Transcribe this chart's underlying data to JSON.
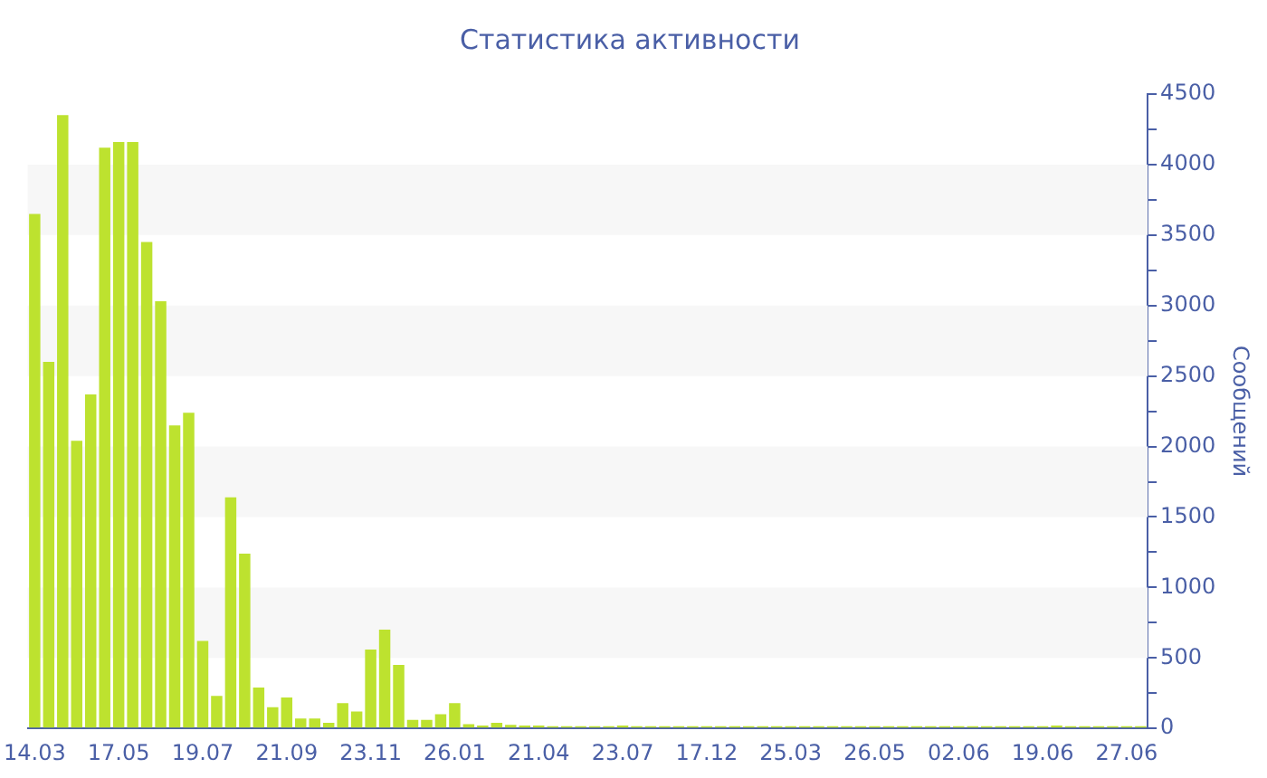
{
  "chart_data": {
    "type": "bar",
    "title": "Статистика активности",
    "ylabel": "Сообщений",
    "categories": [
      "14.03",
      null,
      null,
      null,
      null,
      null,
      "17.05",
      null,
      null,
      null,
      null,
      null,
      "19.07",
      null,
      null,
      null,
      null,
      null,
      "21.09",
      null,
      null,
      null,
      null,
      null,
      "23.11",
      null,
      null,
      null,
      null,
      null,
      "26.01",
      null,
      null,
      null,
      null,
      null,
      "21.04",
      null,
      null,
      null,
      null,
      null,
      "23.07",
      null,
      null,
      null,
      null,
      null,
      "17.12",
      null,
      null,
      null,
      null,
      null,
      "25.03",
      null,
      null,
      null,
      null,
      null,
      "26.05",
      null,
      null,
      null,
      null,
      null,
      "02.06",
      null,
      null,
      null,
      null,
      null,
      "19.06",
      null,
      null,
      null,
      null,
      null,
      "27.06",
      null
    ],
    "series": [
      {
        "color": "#bde22f",
        "values": [
          3650,
          2600,
          4350,
          2040,
          2370,
          4120,
          4160,
          4160,
          3450,
          3030,
          2150,
          2240,
          620,
          230,
          1640,
          1240,
          290,
          150,
          220,
          70,
          70,
          40,
          180,
          120,
          560,
          700,
          450,
          60,
          60,
          100,
          180,
          30,
          20,
          40,
          25,
          20,
          20,
          15,
          15,
          15,
          15,
          15,
          20,
          15,
          15,
          15,
          15,
          15,
          15,
          15,
          15,
          15,
          15,
          15,
          15,
          15,
          15,
          15,
          15,
          15,
          15,
          15,
          15,
          15,
          15,
          15,
          15,
          15,
          15,
          15,
          15,
          15,
          15,
          20,
          15,
          15,
          15,
          15,
          15,
          15
        ]
      }
    ],
    "ylim": [
      0,
      4500
    ],
    "yticks": [
      0,
      {
        "value": 250,
        "label": null
      },
      500,
      {
        "value": 750,
        "label": null
      },
      1000,
      {
        "value": 1250,
        "label": null
      },
      1500,
      {
        "value": 1750,
        "label": null
      },
      2000,
      {
        "value": 2250,
        "label": null
      },
      2500,
      {
        "value": 2750,
        "label": null
      },
      3000,
      {
        "value": 3250,
        "label": null
      },
      3500,
      {
        "value": 3750,
        "label": null
      },
      4000,
      {
        "value": 4250,
        "label": null
      },
      4500
    ],
    "bands": [
      {
        "axis": "y",
        "from": 500,
        "to": 1000,
        "color": "#f7f7f7"
      },
      {
        "axis": "y",
        "from": 1500,
        "to": 2000,
        "color": "#f7f7f7"
      },
      {
        "axis": "y",
        "from": 2500,
        "to": 3000,
        "color": "#f7f7f7"
      },
      {
        "axis": "y",
        "from": 3500,
        "to": 4000,
        "color": "#f7f7f7"
      }
    ],
    "grid": false,
    "legend": false
  }
}
